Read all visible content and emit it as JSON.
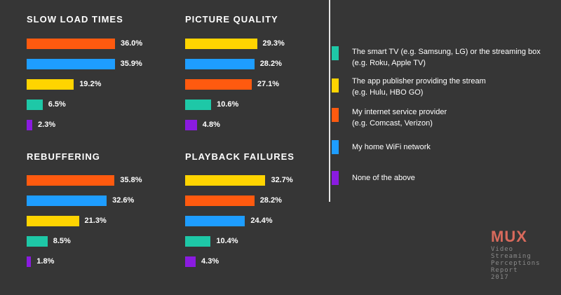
{
  "colors": {
    "smart_tv": "#1ec8a7",
    "app_publisher": "#ffd400",
    "isp": "#ff5a0f",
    "wifi": "#1e9dff",
    "none": "#8a1be0"
  },
  "chart_data": [
    {
      "type": "bar",
      "title": "SLOW LOAD TIMES",
      "series": [
        {
          "key": "isp",
          "value": 36.0,
          "label": "36.0%"
        },
        {
          "key": "wifi",
          "value": 35.9,
          "label": "35.9%"
        },
        {
          "key": "app_publisher",
          "value": 19.2,
          "label": "19.2%"
        },
        {
          "key": "smart_tv",
          "value": 6.5,
          "label": "6.5%"
        },
        {
          "key": "none",
          "value": 2.3,
          "label": "2.3%"
        }
      ]
    },
    {
      "type": "bar",
      "title": "PICTURE QUALITY",
      "series": [
        {
          "key": "app_publisher",
          "value": 29.3,
          "label": "29.3%"
        },
        {
          "key": "wifi",
          "value": 28.2,
          "label": "28.2%"
        },
        {
          "key": "isp",
          "value": 27.1,
          "label": "27.1%"
        },
        {
          "key": "smart_tv",
          "value": 10.6,
          "label": "10.6%"
        },
        {
          "key": "none",
          "value": 4.8,
          "label": "4.8%"
        }
      ]
    },
    {
      "type": "bar",
      "title": "REBUFFERING",
      "series": [
        {
          "key": "isp",
          "value": 35.8,
          "label": "35.8%"
        },
        {
          "key": "wifi",
          "value": 32.6,
          "label": "32.6%"
        },
        {
          "key": "app_publisher",
          "value": 21.3,
          "label": "21.3%"
        },
        {
          "key": "smart_tv",
          "value": 8.5,
          "label": "8.5%"
        },
        {
          "key": "none",
          "value": 1.8,
          "label": "1.8%"
        }
      ]
    },
    {
      "type": "bar",
      "title": "PLAYBACK FAILURES",
      "series": [
        {
          "key": "app_publisher",
          "value": 32.7,
          "label": "32.7%"
        },
        {
          "key": "isp",
          "value": 28.2,
          "label": "28.2%"
        },
        {
          "key": "wifi",
          "value": 24.4,
          "label": "24.4%"
        },
        {
          "key": "smart_tv",
          "value": 10.4,
          "label": "10.4%"
        },
        {
          "key": "none",
          "value": 4.3,
          "label": "4.3%"
        }
      ]
    }
  ],
  "legend": [
    {
      "key": "smart_tv",
      "text": "The smart TV (e.g. Samsung, LG) or the streaming box\n(e.g. Roku, Apple TV)"
    },
    {
      "key": "app_publisher",
      "text": "The app publisher providing the stream\n(e.g. Hulu, HBO GO)"
    },
    {
      "key": "isp",
      "text": "My internet service provider\n(e.g. Comcast, Verizon)"
    },
    {
      "key": "wifi",
      "text": "My home WiFi network"
    },
    {
      "key": "none",
      "text": "None of the above"
    }
  ],
  "branding": {
    "logo": "MUX",
    "subtitle": "Video\nStreaming\nPerceptions\nReport\n2017"
  }
}
